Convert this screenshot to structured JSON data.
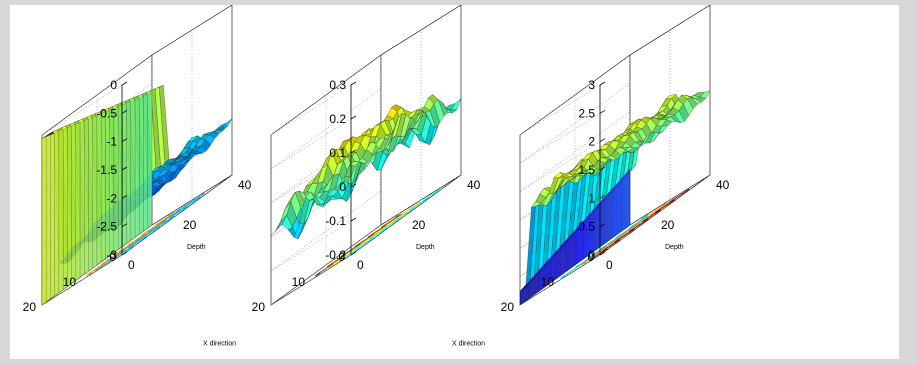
{
  "colors": {
    "window_background": "#d8d8d8",
    "canvas_background": "#ffffff",
    "colormap": [
      "#00008f",
      "#0000ff",
      "#0080ff",
      "#00ffff",
      "#80ff80",
      "#ffff00",
      "#ff8000",
      "#ff0000",
      "#800000"
    ]
  },
  "chart_data": [
    {
      "type": "surface",
      "zlim": [
        -3,
        0
      ],
      "z_ticks": [
        "0",
        "-0.5",
        "-1",
        "-1.5",
        "-2",
        "-2.5",
        "-3"
      ],
      "x_ticks": [
        "0",
        "10",
        "20"
      ],
      "y_ticks": [
        "0",
        "20",
        "40"
      ],
      "xlabel": "X direction",
      "ylabel": "Depth",
      "contour_colors": [
        "#00bfff",
        "#20b2aa",
        "#ff8c00"
      ]
    },
    {
      "type": "surface",
      "zlim": [
        -0.3,
        0.3
      ],
      "z_ticks": [
        "0.3",
        "0.2",
        "0.1",
        "0",
        "-0.1",
        "-0.2"
      ],
      "x_ticks": [
        "0",
        "10",
        "20"
      ],
      "y_ticks": [
        "0",
        "20",
        "40"
      ],
      "xlabel": "X direction",
      "ylabel": "Depth",
      "contour_colors": [
        "#00ffff",
        "#ffd700",
        "#8b4513"
      ]
    },
    {
      "type": "surface",
      "zlim": [
        0,
        3
      ],
      "z_ticks": [
        "3",
        "2.5",
        "2",
        "1.5",
        "1",
        "0.5",
        "0"
      ],
      "x_ticks": [
        "0",
        "10",
        "20"
      ],
      "y_ticks": [
        "0",
        "20",
        "40"
      ],
      "xlabel": "X direction",
      "ylabel": "Depth",
      "contour_colors": [
        "#8b0000",
        "#ff8c00",
        "#00ced1"
      ]
    }
  ]
}
